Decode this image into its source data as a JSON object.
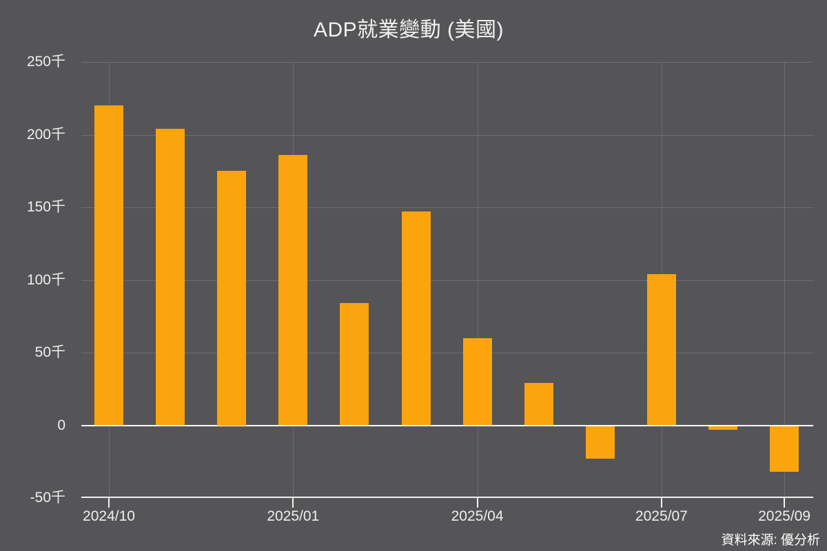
{
  "title": "ADP就業變動 (美國)",
  "source": "資料來源: 優分析",
  "chart_data": {
    "type": "bar",
    "title": "ADP就業變動 (美國)",
    "unit": "千",
    "x": [
      "2024/10",
      "2024/11",
      "2024/12",
      "2025/01",
      "2025/02",
      "2025/03",
      "2025/04",
      "2025/05",
      "2025/06",
      "2025/07",
      "2025/08",
      "2025/09"
    ],
    "values": [
      220,
      204,
      175,
      186,
      84,
      147,
      60,
      29,
      -23,
      104,
      -3,
      -32
    ],
    "xlabel": "",
    "ylabel": "",
    "ylim": [
      -50,
      250
    ],
    "ytick_step": 50,
    "ytick_labels": [
      "250千",
      "200千",
      "150千",
      "100千",
      "50千",
      "0",
      "-50千"
    ],
    "xtick_labels": [
      "2024/10",
      "2025/01",
      "2025/04",
      "2025/07",
      "2025/09"
    ],
    "xtick_indices": [
      0,
      3,
      6,
      9,
      11
    ],
    "grid": true,
    "legend": "none",
    "colors": {
      "background": "#555456",
      "bar": "#FBA40D",
      "gridline": "#6F6E71",
      "zero_line": "#FFFFFF",
      "axis_line": "#F3F2F3",
      "title_text": "#F2F2F2",
      "axis_text": "#EFEEEF",
      "source_text": "#FFFFFF"
    }
  }
}
